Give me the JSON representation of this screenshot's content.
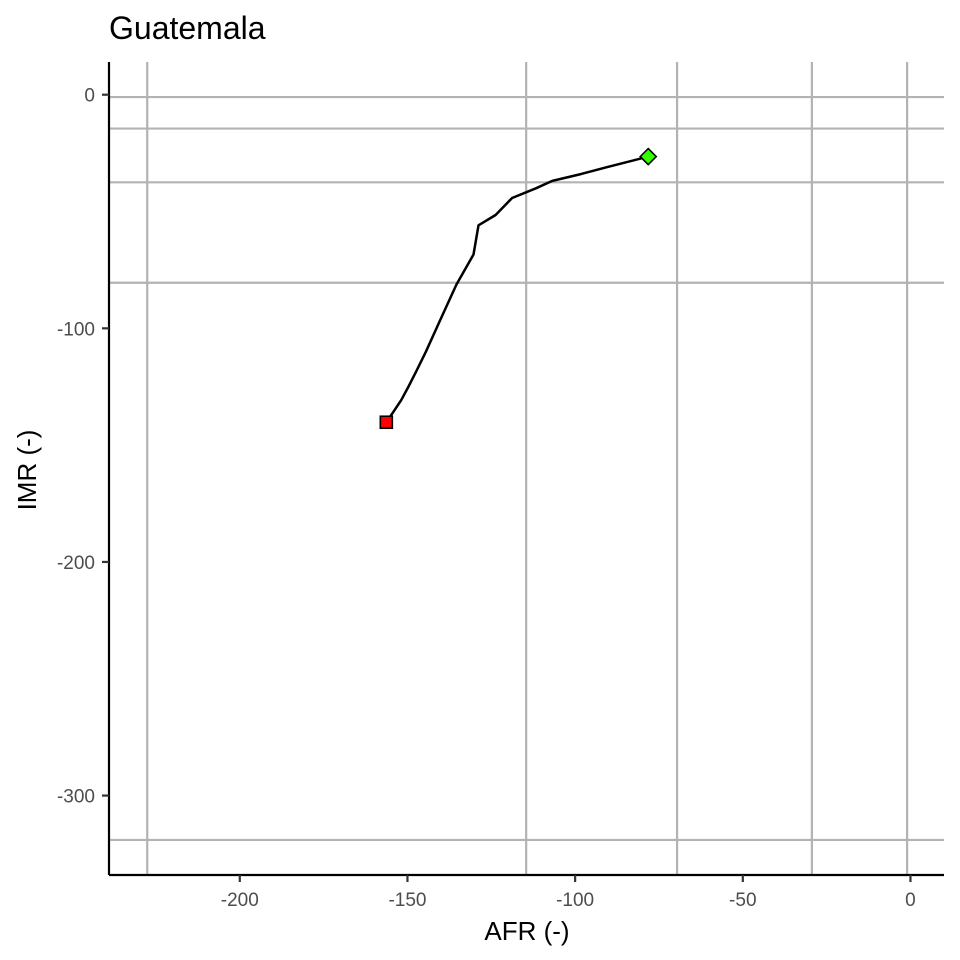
{
  "chart_data": {
    "type": "line",
    "title": "Guatemala",
    "xlabel": "AFR (-)",
    "ylabel": "IMR (-)",
    "xlim": [
      -239,
      10
    ],
    "ylim": [
      -334,
      14
    ],
    "x_ticks": [
      -200,
      -150,
      -100,
      -50,
      0
    ],
    "y_ticks": [
      0,
      -100,
      -200,
      -300
    ],
    "grid": {
      "vertical_x": [
        -227.6,
        -114.6,
        -69.6,
        -29.4,
        -1.0
      ],
      "horizontal_y": [
        -1.0,
        -14.5,
        -37.5,
        -80.5,
        -319.0
      ]
    },
    "series": [
      {
        "x": [
          -156.3,
          -154.3,
          -151.8,
          -149.6,
          -147.3,
          -144.5,
          -140.2,
          -135.4,
          -130.3,
          -128.8,
          -123.7,
          -118.8,
          -111.6,
          -106.8,
          -98.3,
          -90.4,
          -78.2
        ],
        "y": [
          -140.2,
          -136.0,
          -130.6,
          -124.7,
          -118.2,
          -110.0,
          -96.4,
          -81.3,
          -68.4,
          -55.9,
          -51.5,
          -44.2,
          -40.0,
          -36.9,
          -34.0,
          -31.0,
          -26.5
        ],
        "color": "#000000"
      }
    ],
    "start_point": {
      "x": -156.3,
      "y": -140.2,
      "shape": "square",
      "color": "#ff0000"
    },
    "end_point": {
      "x": -78.2,
      "y": -26.5,
      "shape": "diamond",
      "color": "#33ff00"
    }
  }
}
